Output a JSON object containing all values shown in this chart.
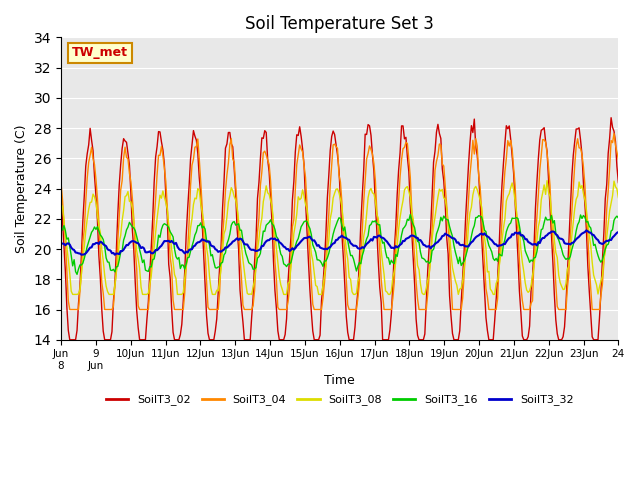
{
  "title": "Soil Temperature Set 3",
  "xlabel": "Time",
  "ylabel": "Soil Temperature (C)",
  "ylim": [
    14,
    34
  ],
  "yticks": [
    14,
    16,
    18,
    20,
    22,
    24,
    26,
    28,
    30,
    32,
    34
  ],
  "bg_color": "#e8e8e8",
  "annotation_text": "TW_met",
  "annotation_bg": "#ffffcc",
  "annotation_border": "#cc8800",
  "annotation_text_color": "#cc0000",
  "series_colors": {
    "SoilT3_02": "#cc0000",
    "SoilT3_04": "#ff8800",
    "SoilT3_08": "#dddd00",
    "SoilT3_16": "#00cc00",
    "SoilT3_32": "#0000cc"
  },
  "x_tick_positions": [
    0,
    1,
    2,
    3,
    4,
    5,
    6,
    7,
    8,
    9,
    10,
    11,
    12,
    13,
    14,
    15,
    16
  ],
  "x_tick_labels": [
    "Jun\n8",
    "9\nJun",
    "10Jun",
    "11Jun",
    "12Jun",
    "13Jun",
    "14Jun",
    "15Jun",
    "16Jun",
    "17Jun",
    "18Jun",
    "19Jun",
    "20Jun",
    "21Jun",
    "22Jun",
    "23Jun",
    "24"
  ]
}
